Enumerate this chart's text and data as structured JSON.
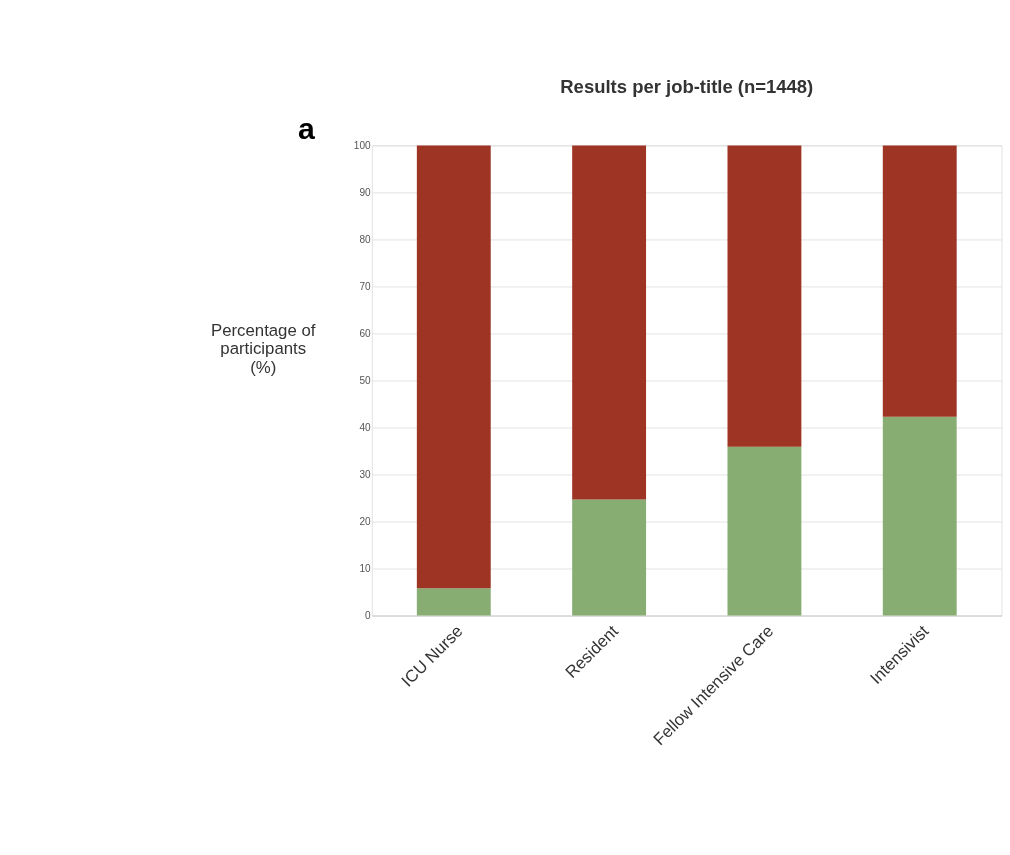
{
  "chart_data": {
    "type": "bar",
    "title": "Results per job-title (n=1448)",
    "ylabel": "Percentage of\nparticipants\n(%)",
    "annotations": [
      "a"
    ],
    "categories": [
      "ICU Nurse",
      "Resident",
      "Fellow Intensive Care",
      "Intensivist"
    ],
    "stacked": true,
    "series": [
      {
        "color": "#87ad73",
        "values": [
          5.8,
          24.7,
          35.9,
          42.3
        ]
      },
      {
        "color": "#9e3524",
        "values": [
          94.2,
          75.3,
          64.1,
          57.7
        ]
      }
    ],
    "ylim": [
      0,
      100
    ],
    "yticks": [
      0,
      10,
      20,
      30,
      40,
      50,
      60,
      70,
      80,
      90,
      100
    ],
    "grid": "y",
    "legend": false
  }
}
